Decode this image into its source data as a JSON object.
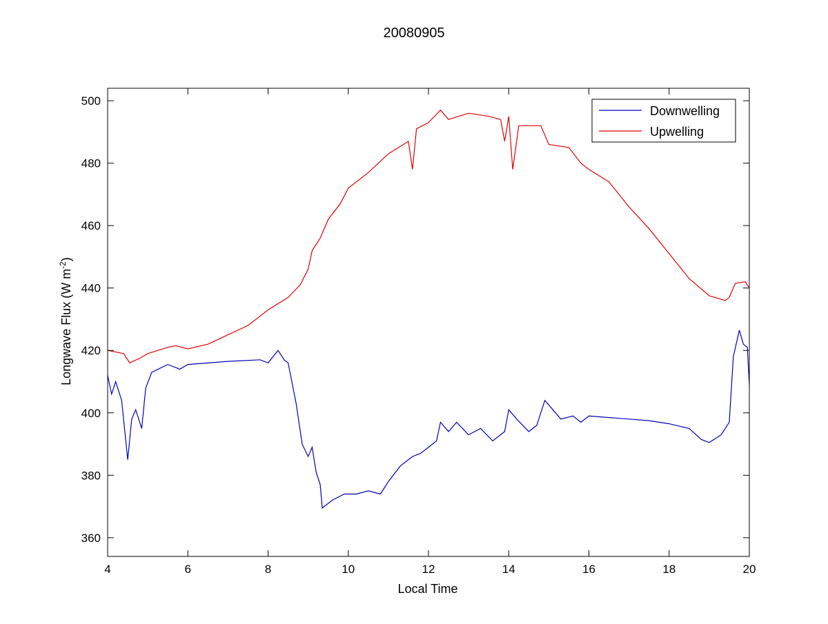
{
  "chart_data": {
    "type": "line",
    "title": "20080905",
    "xlabel": "Local Time",
    "ylabel": {
      "main": "Longwave Flux (W m",
      "sup": "-2",
      "close": ")"
    },
    "xlim": [
      4,
      20
    ],
    "ylim": [
      354,
      504
    ],
    "xticks": [
      4,
      6,
      8,
      10,
      12,
      14,
      16,
      18,
      20
    ],
    "yticks": [
      360,
      380,
      400,
      420,
      440,
      460,
      480,
      500
    ],
    "grid": false,
    "legend_placement": "top-right",
    "series": [
      {
        "name": "Downwelling",
        "color": "#0000b0",
        "x": [
          4.0,
          4.1,
          4.2,
          4.35,
          4.5,
          4.6,
          4.7,
          4.85,
          4.95,
          5.1,
          5.5,
          5.8,
          6.0,
          7.0,
          7.8,
          8.0,
          8.25,
          8.4,
          8.5,
          8.7,
          8.85,
          9.0,
          9.1,
          9.2,
          9.3,
          9.35,
          9.6,
          9.9,
          10.2,
          10.5,
          10.8,
          11.0,
          11.3,
          11.6,
          11.8,
          12.0,
          12.2,
          12.3,
          12.5,
          12.7,
          13.0,
          13.3,
          13.6,
          13.9,
          14.0,
          14.2,
          14.5,
          14.7,
          14.9,
          15.1,
          15.3,
          15.6,
          15.8,
          16.0,
          16.5,
          17.0,
          17.5,
          18.0,
          18.5,
          18.8,
          19.0,
          19.3,
          19.5,
          19.6,
          19.75,
          19.85,
          19.95,
          20.0
        ],
        "y": [
          412,
          406,
          410,
          404,
          385,
          398,
          401,
          395,
          408,
          413,
          415.5,
          414,
          415.5,
          416.5,
          417,
          416,
          420,
          417,
          416,
          403,
          390,
          386,
          389,
          381,
          377,
          369.5,
          372,
          374,
          374,
          375,
          374,
          378,
          383,
          386,
          387,
          389,
          391,
          397,
          394,
          397,
          393,
          395,
          391,
          394,
          401,
          398,
          394,
          396,
          404,
          401,
          398,
          399,
          397,
          399,
          398.5,
          398,
          397.5,
          396.5,
          395,
          391.5,
          390.5,
          393,
          397,
          418,
          426.5,
          422,
          421,
          409
        ]
      },
      {
        "name": "Upwelling",
        "color": "#e00000",
        "x": [
          4.0,
          4.4,
          4.55,
          4.8,
          5.0,
          5.5,
          5.7,
          6.0,
          6.5,
          7.0,
          7.5,
          8.0,
          8.5,
          8.8,
          9.0,
          9.1,
          9.3,
          9.5,
          9.8,
          10.0,
          10.5,
          11.0,
          11.5,
          11.6,
          11.7,
          12.0,
          12.3,
          12.5,
          13.0,
          13.5,
          13.8,
          13.9,
          14.0,
          14.1,
          14.25,
          14.5,
          14.8,
          15.0,
          15.5,
          15.8,
          16.0,
          16.5,
          17.0,
          17.5,
          18.0,
          18.5,
          19.0,
          19.4,
          19.5,
          19.65,
          19.9,
          20.0
        ],
        "y": [
          420,
          419,
          416,
          417.5,
          419,
          421,
          421.5,
          420.5,
          422,
          425,
          428,
          433,
          437,
          441,
          446,
          452,
          456,
          462,
          467,
          472,
          477,
          483,
          487,
          478,
          491,
          493,
          497,
          494,
          496,
          495,
          494,
          487,
          495,
          478,
          492,
          492,
          492,
          486,
          485,
          480,
          478,
          474,
          466,
          459,
          451,
          443,
          437.5,
          436,
          437,
          441.5,
          442,
          440
        ]
      }
    ]
  }
}
